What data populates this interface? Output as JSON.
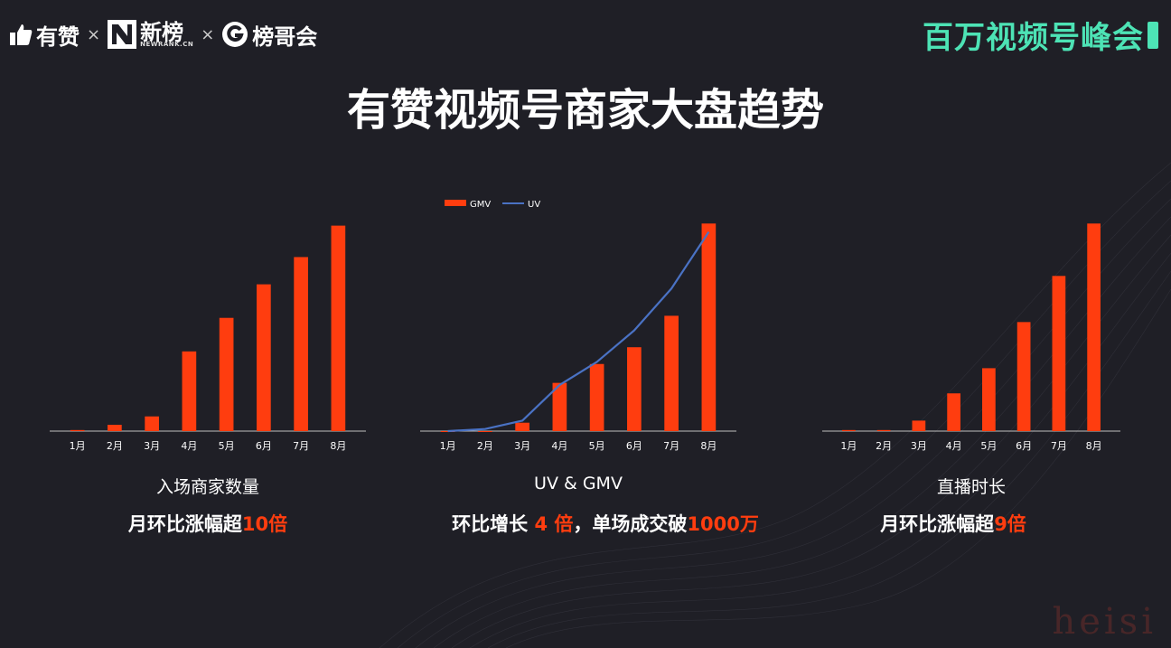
{
  "header": {
    "logo_youzan": "有赞",
    "times_1": "×",
    "logo_newrank": "新榜",
    "logo_newrank_sub": "NEWRANK.CN",
    "times_2": "×",
    "logo_bangge": "榜哥会",
    "summit": "百万视频号峰会"
  },
  "title": "有赞视频号商家大盘趋势",
  "colors": {
    "bar": "#ff3d0f",
    "line": "#4a72c4",
    "accent": "#ff3d0f",
    "summit": "#4de3b5"
  },
  "chart_data": [
    {
      "type": "bar",
      "categories": [
        "1月",
        "2月",
        "3月",
        "4月",
        "5月",
        "6月",
        "7月",
        "8月"
      ],
      "values": [
        0.5,
        3,
        7,
        38,
        54,
        70,
        83,
        98
      ],
      "title": "入场商家数量",
      "ylim": [
        0,
        100
      ],
      "legend": false
    },
    {
      "type": "bar",
      "categories": [
        "1月",
        "2月",
        "3月",
        "4月",
        "5月",
        "6月",
        "7月",
        "8月"
      ],
      "series": [
        {
          "name": "GMV",
          "type": "bar",
          "values": [
            0,
            0,
            4,
            23,
            32,
            40,
            55,
            99
          ]
        },
        {
          "name": "UV",
          "type": "line",
          "values": [
            0,
            1,
            5,
            22,
            33,
            48,
            68,
            95
          ]
        }
      ],
      "title": "UV & GMV",
      "ylim": [
        0,
        100
      ],
      "legend": "top-left"
    },
    {
      "type": "bar",
      "categories": [
        "1月",
        "2月",
        "3月",
        "4月",
        "5月",
        "6月",
        "7月",
        "8月"
      ],
      "values": [
        0.5,
        0.5,
        5,
        18,
        30,
        52,
        74,
        99
      ],
      "title": "直播时长",
      "ylim": [
        0,
        100
      ],
      "legend": false
    }
  ],
  "captions": [
    {
      "pre": "月环比涨幅超",
      "hl": "10倍"
    },
    {
      "pre": "环比增长 ",
      "hl": "4 倍",
      "mid": "，单场成交破",
      "hl2": "1000万"
    },
    {
      "pre": "月环比涨幅超",
      "hl": "9倍"
    }
  ],
  "watermark": "heisi"
}
